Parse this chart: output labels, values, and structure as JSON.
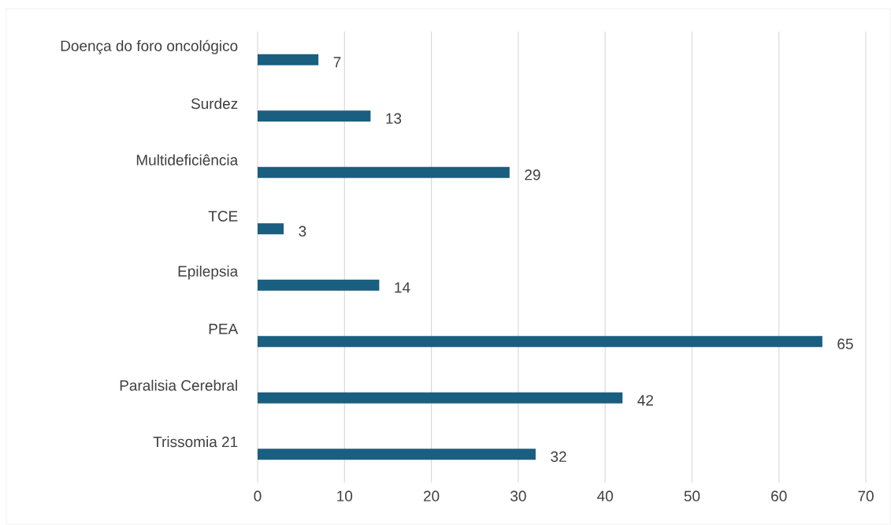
{
  "chart_data": {
    "type": "bar",
    "orientation": "horizontal",
    "categories": [
      "Doença do foro oncológico",
      "Surdez",
      "Multideficiência",
      "TCE",
      "Epilepsia",
      "PEA",
      "Paralisia Cerebral",
      "Trissomia 21"
    ],
    "values": [
      7,
      13,
      29,
      3,
      14,
      65,
      42,
      32
    ],
    "color": "#1a5e80",
    "xlim": [
      0,
      70
    ],
    "xticks": [
      0,
      10,
      20,
      30,
      40,
      50,
      60,
      70
    ],
    "grid": "x",
    "data_labels": true
  }
}
